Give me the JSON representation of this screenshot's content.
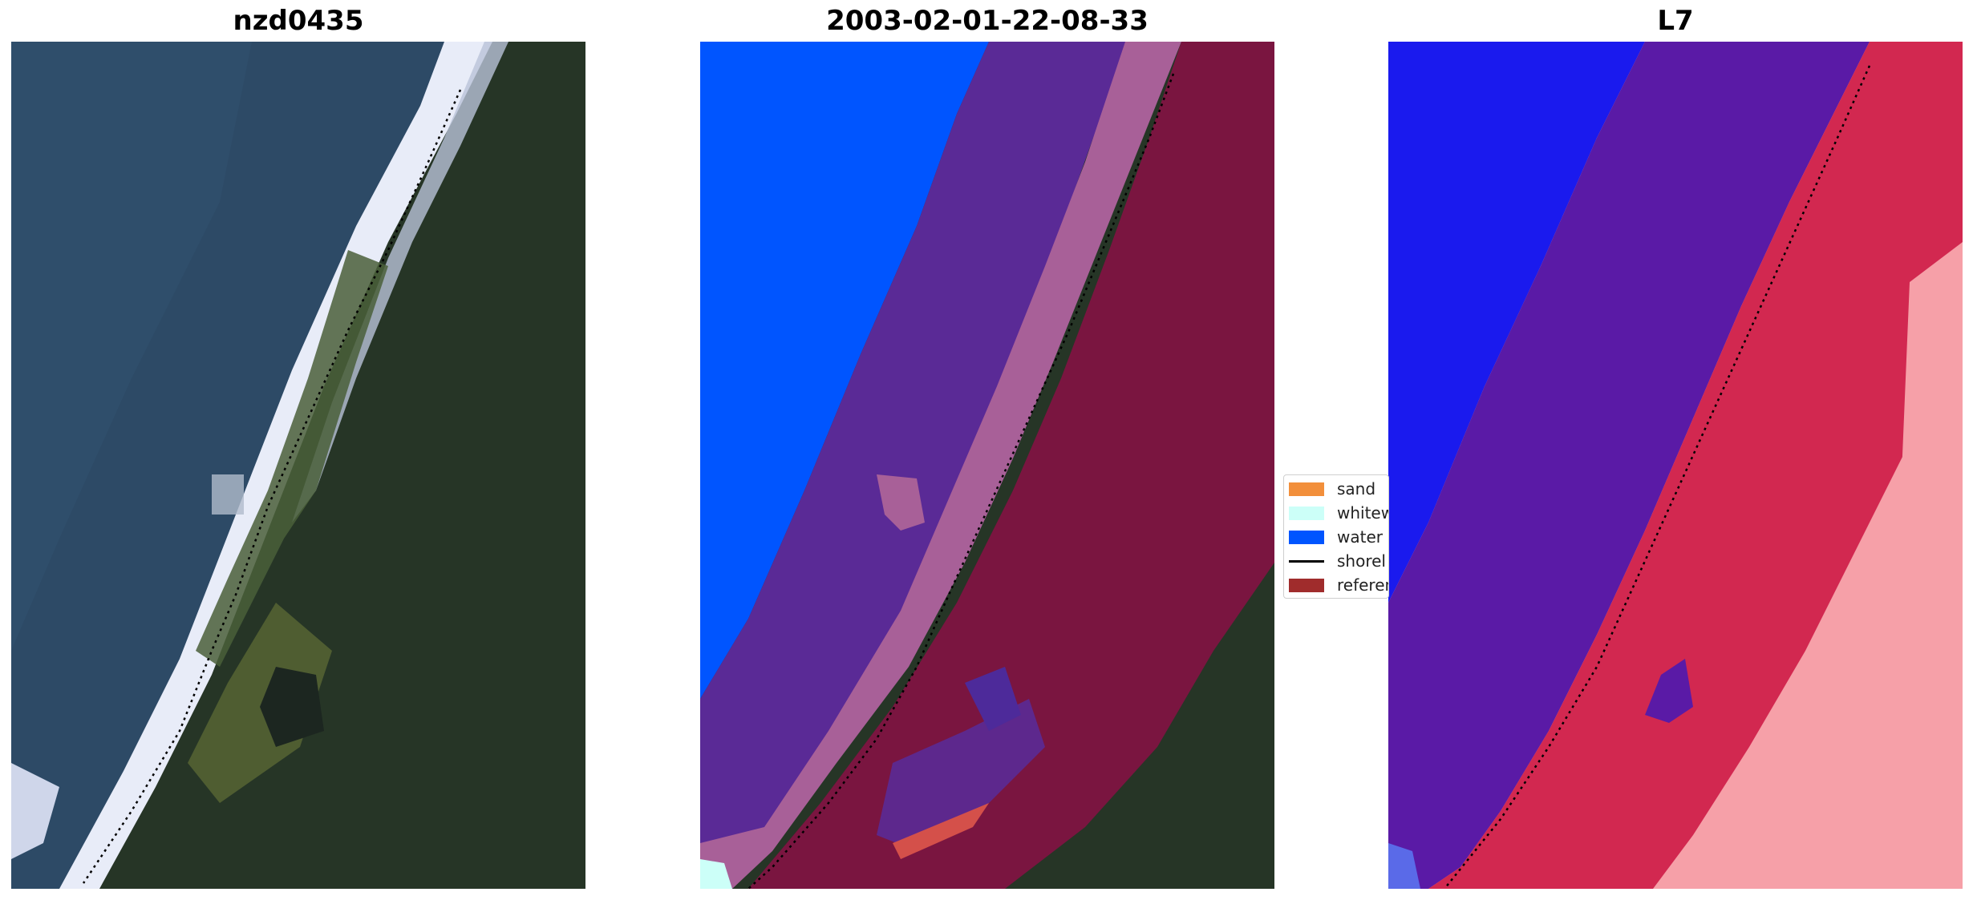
{
  "panels": [
    {
      "title": "nzd0435"
    },
    {
      "title": "2003-02-01-22-08-33"
    },
    {
      "title": "L7"
    }
  ],
  "legend": {
    "items": [
      {
        "label": "sand",
        "color": "#f28f3b"
      },
      {
        "label": "whitew",
        "color": "#ccfff8"
      },
      {
        "label": "water",
        "color": "#0055ff"
      },
      {
        "label": "shorel",
        "color": "#000000"
      },
      {
        "label": "referen",
        "color": "#a02c2c"
      }
    ]
  },
  "colors": {
    "sea": "#2d4a66",
    "land": "#263526",
    "surf": "#e8ecf8",
    "water_class": "#0055ff",
    "purple_band": "#5a2a96",
    "pink_band": "#a86098",
    "reference": "#7a1540",
    "blue_index": "#1a1aee",
    "red_index": "#d22850",
    "light_red": "#f6a0a8"
  }
}
